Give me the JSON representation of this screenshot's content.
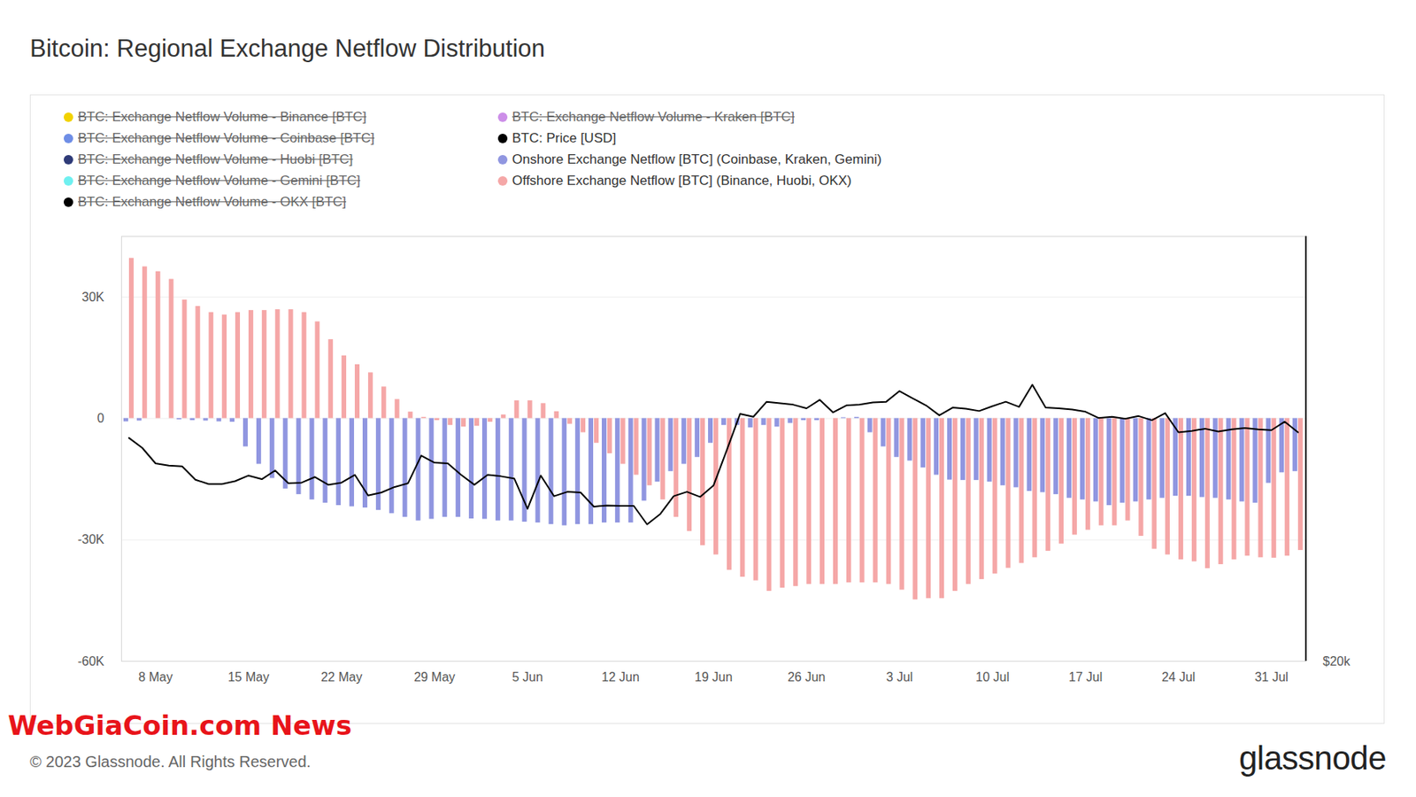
{
  "chart_data": {
    "type": "bar",
    "title": "Bitcoin: Regional Exchange Netflow Distribution",
    "categories": [
      null,
      null,
      "8 May",
      null,
      null,
      null,
      null,
      null,
      null,
      "15 May",
      null,
      null,
      null,
      null,
      null,
      null,
      "22 May",
      null,
      null,
      null,
      null,
      null,
      null,
      "29 May",
      null,
      null,
      null,
      null,
      null,
      null,
      "5 Jun",
      null,
      null,
      null,
      null,
      null,
      null,
      "12 Jun",
      null,
      null,
      null,
      null,
      null,
      null,
      "19 Jun",
      null,
      null,
      null,
      null,
      null,
      null,
      "26 Jun",
      null,
      null,
      null,
      null,
      null,
      null,
      "3 Jul",
      null,
      null,
      null,
      null,
      null,
      null,
      "10 Jul",
      null,
      null,
      null,
      null,
      null,
      null,
      "17 Jul",
      null,
      null,
      null,
      null,
      null,
      null,
      "24 Jul",
      null,
      null,
      null,
      null,
      null,
      null,
      "31 Jul",
      null,
      null
    ],
    "series": [
      {
        "name": "BTC: Price [USD]",
        "type": "line",
        "axis": "y2",
        "color": "#000000",
        "values": [
          29200,
          28790,
          28150,
          28060,
          28030,
          27480,
          27300,
          27300,
          27420,
          27650,
          27500,
          27860,
          27330,
          27360,
          27590,
          27270,
          27360,
          27680,
          26830,
          26950,
          27180,
          27330,
          28470,
          28180,
          28150,
          27680,
          27270,
          27680,
          27620,
          27530,
          26280,
          27650,
          26800,
          26980,
          26950,
          26370,
          26420,
          26400,
          26400,
          25640,
          26070,
          26800,
          26980,
          26770,
          27240,
          28700,
          30190,
          30070,
          30690,
          30630,
          30570,
          30420,
          30770,
          30250,
          30540,
          30570,
          30660,
          30690,
          31130,
          30830,
          30540,
          30130,
          30450,
          30400,
          30310,
          30510,
          30690,
          30480,
          31390,
          30450,
          30420,
          30370,
          30280,
          30020,
          30070,
          29990,
          30100,
          29930,
          30220,
          29430,
          29490,
          29580,
          29460,
          29550,
          29610,
          29550,
          29520,
          29870,
          29430
        ]
      },
      {
        "name": "Onshore Exchange Netflow [BTC] (Coinbase, Kraken, Gemini)",
        "type": "bar",
        "color": "#9096e0",
        "values": [
          -800,
          -600,
          0,
          0,
          -300,
          -500,
          -600,
          -800,
          -900,
          -7000,
          -11300,
          -14800,
          -17400,
          -18800,
          -20100,
          -20900,
          -21500,
          -21800,
          -22100,
          -22700,
          -23500,
          -24400,
          -25300,
          -24900,
          -24400,
          -24400,
          -24800,
          -24900,
          -25300,
          -25300,
          -25600,
          -25800,
          -26200,
          -26500,
          -26200,
          -26200,
          -25800,
          -25800,
          -25800,
          -20400,
          -15700,
          -13100,
          -11300,
          -9600,
          -6100,
          -1700,
          -1700,
          -2300,
          -1700,
          -2100,
          -1200,
          -500,
          -500,
          0,
          200,
          300,
          -3500,
          -7000,
          -9600,
          -10500,
          -12200,
          -14000,
          -15200,
          -15300,
          -15300,
          -15700,
          -16600,
          -17100,
          -18000,
          -18300,
          -18800,
          -19700,
          -20100,
          -20600,
          -21500,
          -20900,
          -20600,
          -20100,
          -19700,
          -19200,
          -19200,
          -19500,
          -19700,
          -20100,
          -20600,
          -20900,
          -16000,
          -13400,
          -13100
        ]
      },
      {
        "name": "Offshore Exchange Netflow [BTC] (Binance, Huobi, OKX)",
        "type": "bar",
        "color": "#f5a7a7",
        "values": [
          39600,
          37500,
          36300,
          34400,
          29300,
          27700,
          26200,
          25600,
          26200,
          26700,
          26700,
          26900,
          26900,
          26200,
          23900,
          19500,
          15500,
          13300,
          11300,
          7800,
          4700,
          1600,
          300,
          -500,
          -1700,
          -2100,
          -1900,
          -900,
          900,
          4400,
          4400,
          3700,
          1700,
          -1400,
          -3500,
          -6100,
          -8700,
          -11300,
          -14000,
          -16600,
          -20100,
          -24400,
          -27900,
          -31400,
          -33700,
          -37500,
          -39200,
          -40100,
          -42700,
          -41900,
          -41500,
          -41000,
          -41000,
          -41000,
          -40600,
          -40600,
          -40600,
          -41000,
          -42400,
          -44800,
          -44500,
          -44500,
          -42700,
          -41000,
          -39800,
          -38400,
          -37000,
          -35800,
          -34400,
          -32800,
          -31000,
          -28800,
          -27600,
          -26500,
          -26500,
          -25300,
          -29100,
          -32300,
          -33700,
          -34900,
          -35400,
          -37100,
          -36100,
          -34900,
          -34000,
          -34400,
          -34500,
          -34000,
          -32600
        ]
      }
    ],
    "ylim": [
      -60000,
      45000
    ],
    "yticks": [
      {
        "value": -60000,
        "label": "-60K"
      },
      {
        "value": -30000,
        "label": "-30K"
      },
      0,
      {
        "value": 30000,
        "label": "30K"
      }
    ],
    "y2lim": [
      20000,
      37500
    ],
    "y2ticks": [
      {
        "value": 20000,
        "label": "$20k"
      }
    ],
    "grid": true,
    "legend": "top-left",
    "inactive_legend_entries": [
      {
        "name": "BTC: Exchange Netflow Volume - Binance [BTC]",
        "color": "#f2d200"
      },
      {
        "name": "BTC: Exchange Netflow Volume - Coinbase [BTC]",
        "color": "#6f8ee6"
      },
      {
        "name": "BTC: Exchange Netflow Volume - Huobi [BTC]",
        "color": "#2f3b78"
      },
      {
        "name": "BTC: Exchange Netflow Volume - Gemini [BTC]",
        "color": "#6ff0f0"
      },
      {
        "name": "BTC: Exchange Netflow Volume - OKX [BTC]",
        "color": "#000000"
      },
      {
        "name": "BTC: Exchange Netflow Volume - Kraken [BTC]",
        "color": "#cc8ee8"
      }
    ],
    "overlay_text": "WebGiaCoin.com News",
    "source": "© 2023 Glassnode. All Rights Reserved.",
    "brand": "glassnode"
  }
}
